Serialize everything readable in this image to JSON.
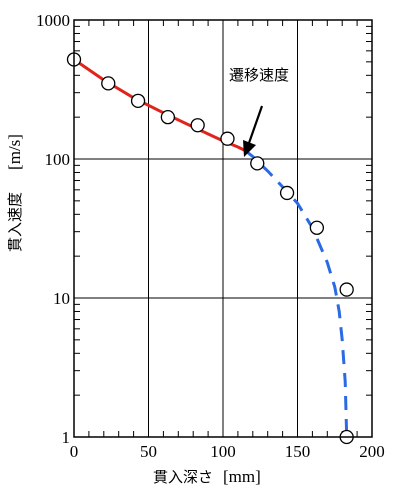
{
  "chart_data": {
    "type": "scatter",
    "xlabel": "貫入深さ",
    "xunit": "[mm]",
    "ylabel": "貫入速度",
    "yunit": "[m/s]",
    "xlim": [
      0,
      200
    ],
    "ylim": [
      1,
      1000
    ],
    "yscale": "log",
    "grid": true,
    "x_ticks": [
      0,
      50,
      100,
      150,
      200
    ],
    "y_ticks": [
      1,
      10,
      100,
      1000
    ],
    "series": [
      {
        "style": "markers",
        "marker": "open-circle",
        "x": [
          0,
          23,
          43,
          63,
          83,
          103,
          123,
          143,
          163,
          183,
          183
        ],
        "y": [
          520,
          350,
          262,
          200,
          175,
          140,
          93,
          57,
          32,
          11.5,
          1.0
        ]
      },
      {
        "style": "solid-line",
        "color": "#e0241b",
        "x": [
          0,
          20,
          40,
          60,
          80,
          100,
          110,
          115
        ],
        "y": [
          520,
          370,
          275,
          215,
          170,
          135,
          122,
          115
        ]
      },
      {
        "style": "dashed-line",
        "color": "#2a6be3",
        "x": [
          115,
          120,
          125,
          130,
          140,
          150,
          160,
          170,
          175,
          178,
          180,
          182,
          183
        ],
        "y": [
          115,
          104,
          92,
          82,
          63,
          48,
          32,
          18,
          12,
          8,
          5,
          2.5,
          1.0
        ]
      }
    ],
    "annotations": [
      {
        "text": "遷移速度",
        "x": 112,
        "y": 115
      }
    ]
  }
}
